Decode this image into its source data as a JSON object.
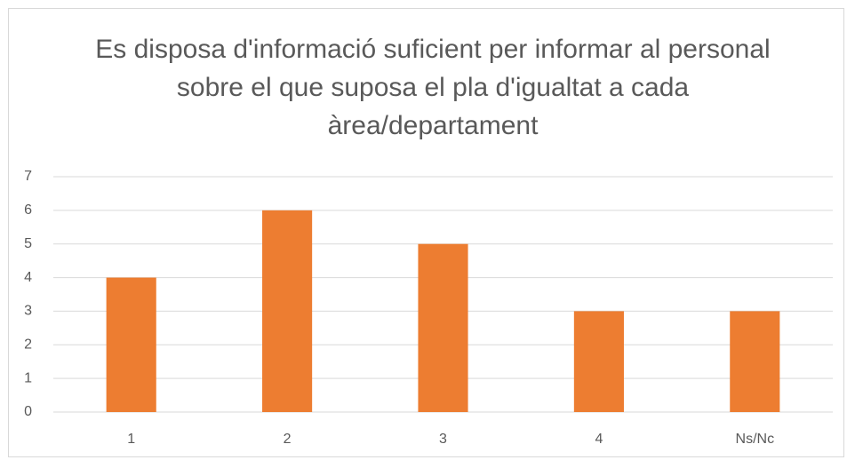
{
  "chart_data": {
    "type": "bar",
    "title": "Es disposa d'informació suficient per informar al personal sobre el que suposa el pla d'igualtat a cada àrea/departament",
    "categories": [
      "1",
      "2",
      "3",
      "4",
      "Ns/Nc"
    ],
    "values": [
      4,
      6,
      5,
      3,
      3
    ],
    "color": "#ed7d31",
    "ylim": [
      0,
      7
    ],
    "yticks": [
      0,
      1,
      2,
      3,
      4,
      5,
      6,
      7
    ],
    "grid": true
  }
}
